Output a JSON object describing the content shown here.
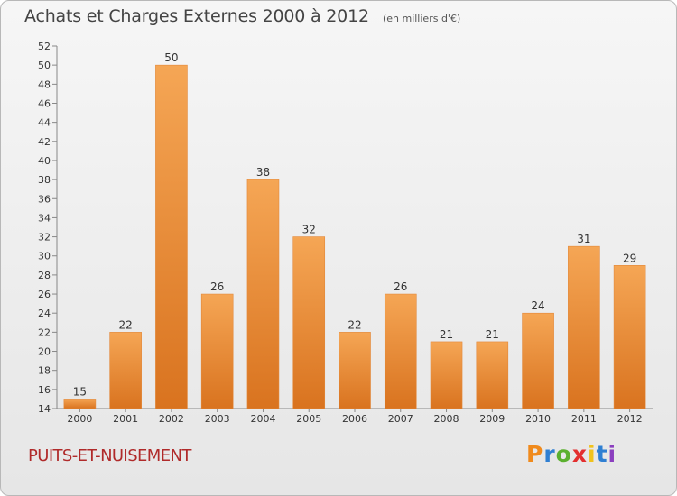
{
  "header": {
    "title": "Achats et Charges Externes 2000 à 2012",
    "subtitle": "(en milliers d'€)"
  },
  "footer": {
    "commune": "PUITS-ET-NUISEMENT",
    "logo_text": "Proxiti"
  },
  "colors": {
    "bar_light": "#f5a655",
    "bar_dark": "#d9731f",
    "commune_text": "#b02a2a",
    "logo_letters": [
      "#f08a1c",
      "#2f7fd2",
      "#5bb02f",
      "#e32f2f",
      "#f0c21c",
      "#2f7fd2",
      "#8b3fbf"
    ]
  },
  "chart_data": {
    "type": "bar",
    "title": "Achats et Charges Externes 2000 à 2012",
    "subtitle": "(en milliers d'€)",
    "categories": [
      "2000",
      "2001",
      "2002",
      "2003",
      "2004",
      "2005",
      "2006",
      "2007",
      "2008",
      "2009",
      "2010",
      "2011",
      "2012"
    ],
    "values": [
      15,
      22,
      50,
      26,
      38,
      32,
      22,
      26,
      21,
      21,
      24,
      31,
      29
    ],
    "ylim": [
      14,
      52
    ],
    "yticks": [
      14,
      16,
      18,
      20,
      22,
      24,
      26,
      28,
      30,
      32,
      34,
      36,
      38,
      40,
      42,
      44,
      46,
      48,
      50,
      52
    ],
    "grid": false,
    "legend": "none",
    "xlabel": "",
    "ylabel": ""
  }
}
